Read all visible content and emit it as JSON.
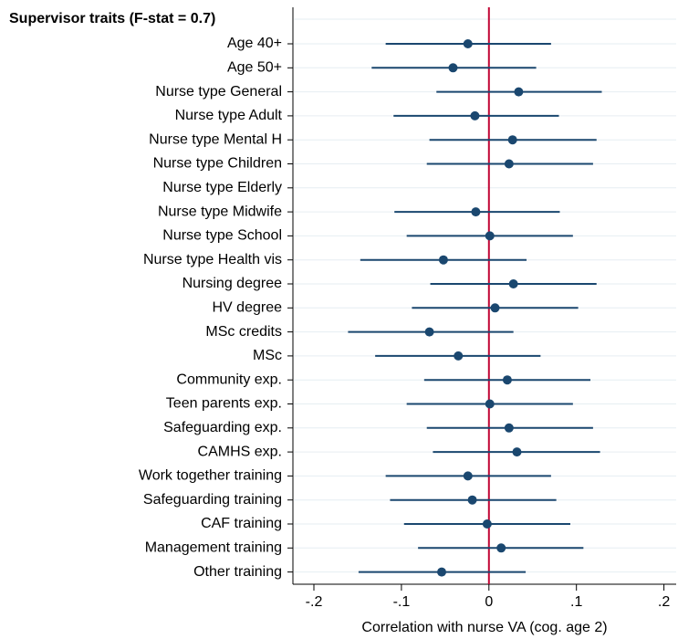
{
  "chart_data": {
    "type": "coefplot",
    "group_label": "Supervisor traits (F-stat = 0.7)",
    "x_label": "Correlation with nurse VA (cog. age 2)",
    "categories": [
      "Age 40+",
      "Age 50+",
      "Nurse type General",
      "Nurse type Adult",
      "Nurse type Mental H",
      "Nurse type Children",
      "Nurse type Elderly",
      "Nurse type Midwife",
      "Nurse type School",
      "Nurse type Health vis",
      "Nursing degree",
      "HV degree",
      "MSc credits",
      "MSc",
      "Community exp.",
      "Teen parents exp.",
      "Safeguarding exp.",
      "CAMHS exp.",
      "Work together training",
      "Safeguarding training",
      "CAF training",
      "Management training",
      "Other training"
    ],
    "values": [
      -0.024,
      -0.041,
      0.034,
      -0.016,
      0.027,
      0.023,
      null,
      -0.015,
      0.001,
      -0.052,
      0.028,
      0.007,
      -0.068,
      -0.035,
      0.021,
      0.001,
      0.023,
      0.032,
      -0.024,
      -0.019,
      -0.002,
      0.014,
      -0.054
    ],
    "lower": [
      -0.118,
      -0.134,
      -0.06,
      -0.109,
      -0.068,
      -0.071,
      null,
      -0.108,
      -0.094,
      -0.147,
      -0.067,
      -0.088,
      -0.161,
      -0.13,
      -0.074,
      -0.094,
      -0.071,
      -0.064,
      -0.118,
      -0.113,
      -0.097,
      -0.081,
      -0.149
    ],
    "upper": [
      0.071,
      0.054,
      0.129,
      0.08,
      0.123,
      0.119,
      null,
      0.081,
      0.096,
      0.043,
      0.123,
      0.102,
      0.028,
      0.059,
      0.116,
      0.096,
      0.119,
      0.127,
      0.071,
      0.077,
      0.093,
      0.108,
      0.042
    ],
    "color": "#1a476f",
    "refline": 0,
    "refline_color": "#c10534",
    "xlim": [
      -0.224,
      0.214
    ],
    "xticks": [
      {
        "value": -0.2,
        "label": "-.2"
      },
      {
        "value": -0.1,
        "label": "-.1"
      },
      0,
      {
        "value": 0.1,
        "label": ".1"
      },
      {
        "value": 0.2,
        "label": ".2"
      }
    ],
    "grid": true
  }
}
